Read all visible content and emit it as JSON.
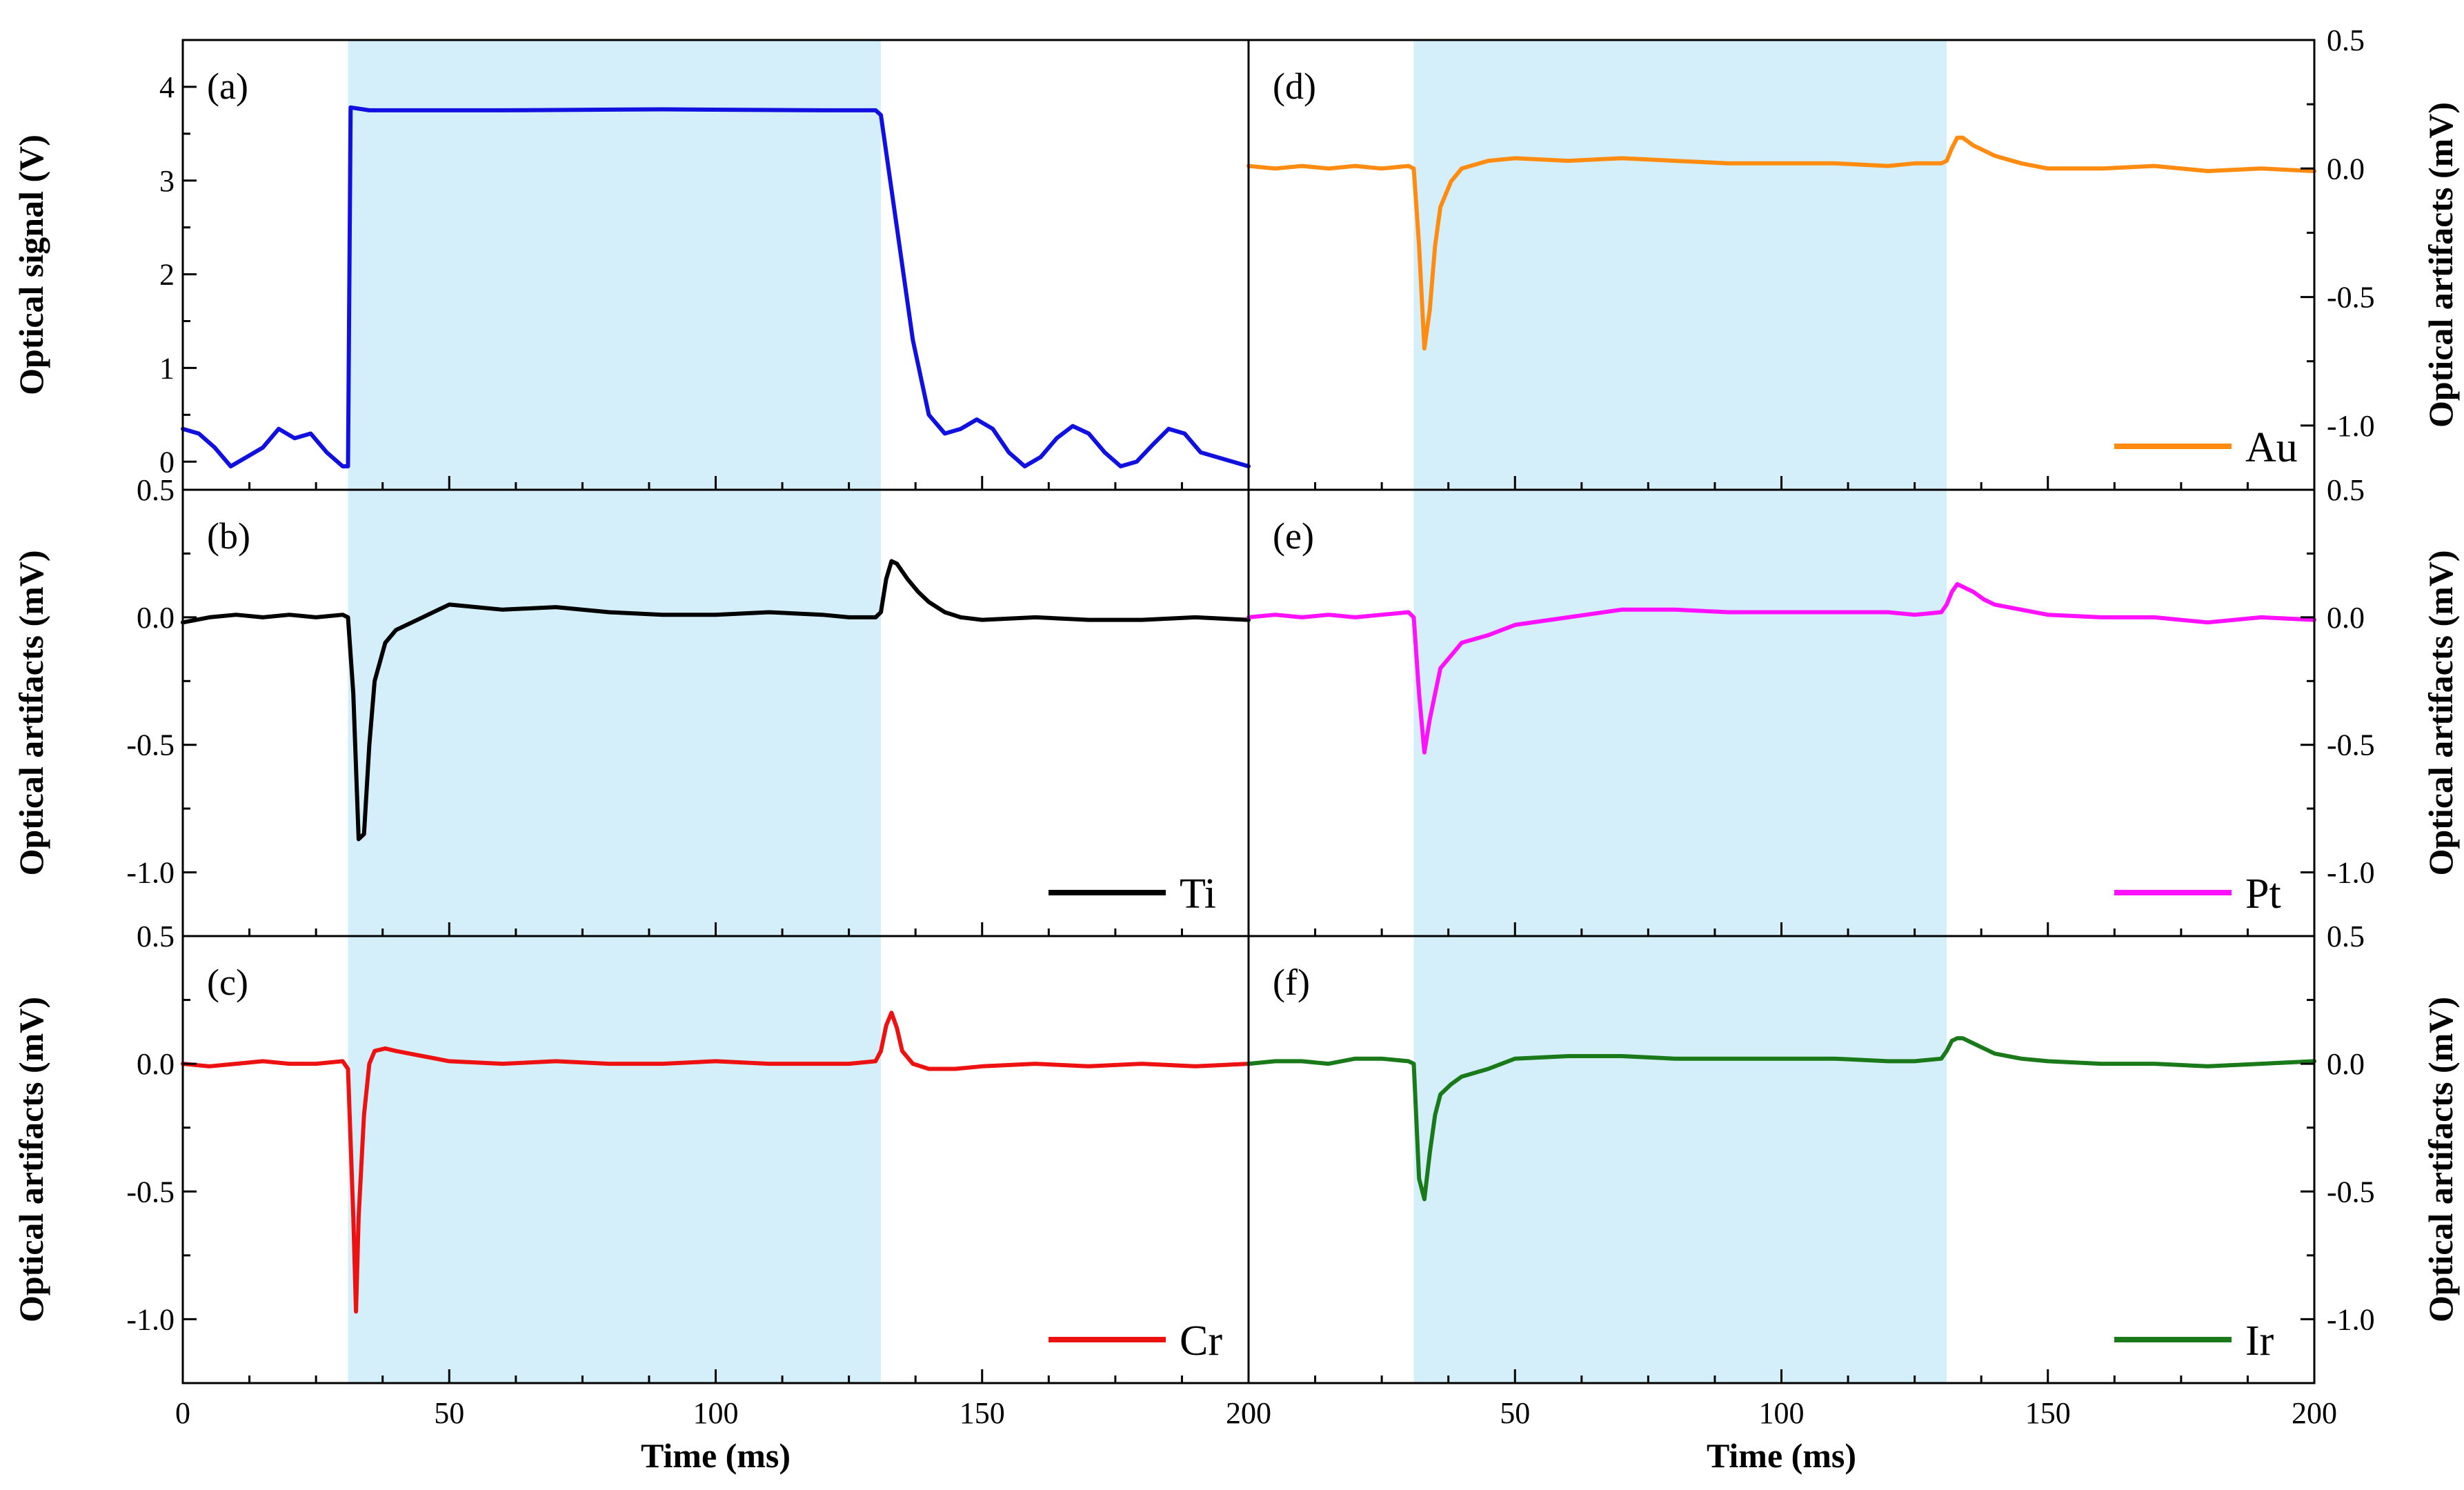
{
  "chart_data": [
    {
      "type": "line",
      "panel": "a",
      "panel_label": "(a)",
      "ylabel": "Optical signal (V)",
      "xlabel": "",
      "xlim": [
        0,
        200
      ],
      "ylim": [
        -0.3,
        4.5
      ],
      "yticks": [
        0,
        1,
        2,
        3,
        4
      ],
      "ytick_labels": [
        "0",
        "1",
        "2",
        "3",
        "4"
      ],
      "yaxis_side": "left",
      "shaded_region": [
        31,
        131
      ],
      "legend": null,
      "color": "#1010e0",
      "series": [
        {
          "name": "Optical signal",
          "x": [
            0,
            3,
            6,
            9,
            12,
            15,
            18,
            21,
            24,
            27,
            30,
            31,
            31.5,
            35,
            60,
            90,
            120,
            130,
            131,
            134,
            137,
            140,
            143,
            146,
            149,
            152,
            155,
            158,
            161,
            164,
            167,
            170,
            173,
            176,
            179,
            182,
            185,
            188,
            191,
            194,
            197,
            200
          ],
          "y": [
            0.35,
            0.3,
            0.15,
            -0.05,
            0.05,
            0.15,
            0.35,
            0.25,
            0.3,
            0.1,
            -0.05,
            -0.05,
            3.78,
            3.75,
            3.75,
            3.76,
            3.75,
            3.75,
            3.7,
            2.5,
            1.3,
            0.5,
            0.3,
            0.35,
            0.45,
            0.35,
            0.1,
            -0.05,
            0.05,
            0.25,
            0.38,
            0.3,
            0.1,
            -0.05,
            0.0,
            0.18,
            0.35,
            0.3,
            0.1,
            0.05,
            0.0,
            -0.05
          ]
        }
      ]
    },
    {
      "type": "line",
      "panel": "b",
      "panel_label": "(b)",
      "ylabel": "Optical artifacts (mV)",
      "xlabel": "",
      "xlim": [
        0,
        200
      ],
      "ylim": [
        -1.25,
        0.5
      ],
      "yticks": [
        -1.0,
        -0.5,
        0.0,
        0.5
      ],
      "ytick_labels": [
        "-1.0",
        "-0.5",
        "0.0",
        "0.5"
      ],
      "yaxis_side": "left",
      "shaded_region": [
        31,
        131
      ],
      "legend": "Ti",
      "color": "#000000",
      "series": [
        {
          "name": "Ti",
          "x": [
            0,
            5,
            10,
            15,
            20,
            25,
            30,
            31,
            32,
            33,
            34,
            35,
            36,
            38,
            40,
            45,
            50,
            60,
            70,
            80,
            90,
            100,
            110,
            120,
            125,
            130,
            131,
            132,
            133,
            134,
            136,
            138,
            140,
            143,
            146,
            150,
            160,
            170,
            180,
            190,
            200
          ],
          "y": [
            -0.02,
            0.0,
            0.01,
            0.0,
            0.01,
            0.0,
            0.01,
            0.0,
            -0.3,
            -0.87,
            -0.85,
            -0.5,
            -0.25,
            -0.1,
            -0.05,
            0.0,
            0.05,
            0.03,
            0.04,
            0.02,
            0.01,
            0.01,
            0.02,
            0.01,
            0.0,
            0.0,
            0.02,
            0.15,
            0.22,
            0.21,
            0.15,
            0.1,
            0.06,
            0.02,
            0.0,
            -0.01,
            0.0,
            -0.01,
            -0.01,
            0.0,
            -0.01
          ]
        }
      ]
    },
    {
      "type": "line",
      "panel": "c",
      "panel_label": "(c)",
      "ylabel": "Optical artifacts (mV)",
      "xlabel": "Time (ms)",
      "xlim": [
        0,
        200
      ],
      "ylim": [
        -1.25,
        0.5
      ],
      "yticks": [
        -1.0,
        -0.5,
        0.0,
        0.5
      ],
      "ytick_labels": [
        "-1.0",
        "-0.5",
        "0.0",
        "0.5"
      ],
      "xticks": [
        0,
        50,
        100,
        150,
        200
      ],
      "xtick_labels": [
        "0",
        "50",
        "100",
        "150",
        "200"
      ],
      "yaxis_side": "left",
      "shaded_region": [
        31,
        131
      ],
      "legend": "Cr",
      "color": "#ee1111",
      "series": [
        {
          "name": "Cr",
          "x": [
            0,
            5,
            10,
            15,
            20,
            25,
            30,
            31,
            32,
            32.5,
            33,
            34,
            35,
            36,
            38,
            40,
            45,
            50,
            60,
            70,
            80,
            90,
            100,
            110,
            120,
            125,
            130,
            131,
            132,
            133,
            134,
            135,
            137,
            140,
            145,
            150,
            160,
            170,
            180,
            190,
            200
          ],
          "y": [
            0.0,
            -0.01,
            0.0,
            0.01,
            0.0,
            0.0,
            0.01,
            -0.02,
            -0.6,
            -0.97,
            -0.6,
            -0.2,
            0.0,
            0.05,
            0.06,
            0.05,
            0.03,
            0.01,
            0.0,
            0.01,
            0.0,
            0.0,
            0.01,
            0.0,
            0.0,
            0.0,
            0.01,
            0.05,
            0.15,
            0.2,
            0.14,
            0.05,
            0.0,
            -0.02,
            -0.02,
            -0.01,
            0.0,
            -0.01,
            0.0,
            -0.01,
            0.0
          ]
        }
      ]
    },
    {
      "type": "line",
      "panel": "d",
      "panel_label": "(d)",
      "ylabel": "Optical artifacts (mV)",
      "xlabel": "",
      "xlim": [
        0,
        200
      ],
      "ylim": [
        -1.25,
        0.5
      ],
      "yticks": [
        -1.0,
        -0.5,
        0.0,
        0.5
      ],
      "ytick_labels": [
        "-1.0",
        "-0.5",
        "0.0",
        "0.5"
      ],
      "yaxis_side": "right",
      "shaded_region": [
        31,
        131
      ],
      "legend": "Au",
      "color": "#ff8c10",
      "series": [
        {
          "name": "Au",
          "x": [
            0,
            5,
            10,
            15,
            20,
            25,
            30,
            31,
            32,
            33,
            34,
            35,
            36,
            38,
            40,
            45,
            50,
            60,
            70,
            80,
            90,
            100,
            110,
            120,
            125,
            130,
            131,
            132,
            133,
            134,
            136,
            138,
            140,
            145,
            150,
            160,
            170,
            180,
            190,
            200
          ],
          "y": [
            0.01,
            0.0,
            0.01,
            0.0,
            0.01,
            0.0,
            0.01,
            0.0,
            -0.3,
            -0.7,
            -0.55,
            -0.3,
            -0.15,
            -0.05,
            0.0,
            0.03,
            0.04,
            0.03,
            0.04,
            0.03,
            0.02,
            0.02,
            0.02,
            0.01,
            0.02,
            0.02,
            0.03,
            0.08,
            0.12,
            0.12,
            0.09,
            0.07,
            0.05,
            0.02,
            0.0,
            0.0,
            0.01,
            -0.01,
            0.0,
            -0.01
          ]
        }
      ]
    },
    {
      "type": "line",
      "panel": "e",
      "panel_label": "(e)",
      "ylabel": "Optical artifacts (mV)",
      "xlabel": "",
      "xlim": [
        0,
        200
      ],
      "ylim": [
        -1.25,
        0.5
      ],
      "yticks": [
        -1.0,
        -0.5,
        0.0,
        0.5
      ],
      "ytick_labels": [
        "-1.0",
        "-0.5",
        "0.0",
        "0.5"
      ],
      "yaxis_side": "right",
      "shaded_region": [
        31,
        131
      ],
      "legend": "Pt",
      "color": "#ff10ff",
      "series": [
        {
          "name": "Pt",
          "x": [
            0,
            5,
            10,
            15,
            20,
            25,
            30,
            31,
            32,
            33,
            34,
            35,
            36,
            38,
            40,
            45,
            50,
            60,
            70,
            80,
            90,
            100,
            110,
            120,
            125,
            130,
            131,
            132,
            133,
            134,
            136,
            138,
            140,
            145,
            150,
            160,
            170,
            180,
            190,
            200
          ],
          "y": [
            0.0,
            0.01,
            0.0,
            0.01,
            0.0,
            0.01,
            0.02,
            0.0,
            -0.3,
            -0.53,
            -0.4,
            -0.3,
            -0.2,
            -0.15,
            -0.1,
            -0.07,
            -0.03,
            0.0,
            0.03,
            0.03,
            0.02,
            0.02,
            0.02,
            0.02,
            0.01,
            0.02,
            0.05,
            0.1,
            0.13,
            0.12,
            0.1,
            0.07,
            0.05,
            0.03,
            0.01,
            0.0,
            0.0,
            -0.02,
            0.0,
            -0.01
          ]
        }
      ]
    },
    {
      "type": "line",
      "panel": "f",
      "panel_label": "(f)",
      "ylabel": "Optical artifacts (mV)",
      "xlabel": "Time (ms)",
      "xlim": [
        0,
        200
      ],
      "ylim": [
        -1.25,
        0.5
      ],
      "yticks": [
        -1.0,
        -0.5,
        0.0,
        0.5
      ],
      "ytick_labels": [
        "-1.0",
        "-0.5",
        "0.0",
        "0.5"
      ],
      "xticks": [
        0,
        50,
        100,
        150,
        200
      ],
      "xtick_labels": [
        "0",
        "50",
        "100",
        "150",
        "200"
      ],
      "yaxis_side": "right",
      "shaded_region": [
        31,
        131
      ],
      "legend": "Ir",
      "color": "#1a7a1a",
      "series": [
        {
          "name": "Ir",
          "x": [
            0,
            5,
            10,
            15,
            20,
            25,
            30,
            31,
            32,
            33,
            34,
            35,
            36,
            38,
            40,
            45,
            50,
            60,
            70,
            80,
            90,
            100,
            110,
            120,
            125,
            130,
            131,
            132,
            133,
            134,
            136,
            138,
            140,
            145,
            150,
            160,
            170,
            180,
            190,
            200
          ],
          "y": [
            0.0,
            0.01,
            0.01,
            0.0,
            0.02,
            0.02,
            0.01,
            0.0,
            -0.45,
            -0.53,
            -0.35,
            -0.2,
            -0.12,
            -0.08,
            -0.05,
            -0.02,
            0.02,
            0.03,
            0.03,
            0.02,
            0.02,
            0.02,
            0.02,
            0.01,
            0.01,
            0.02,
            0.05,
            0.09,
            0.1,
            0.1,
            0.08,
            0.06,
            0.04,
            0.02,
            0.01,
            0.0,
            0.0,
            -0.01,
            0.0,
            0.01
          ]
        }
      ]
    }
  ]
}
